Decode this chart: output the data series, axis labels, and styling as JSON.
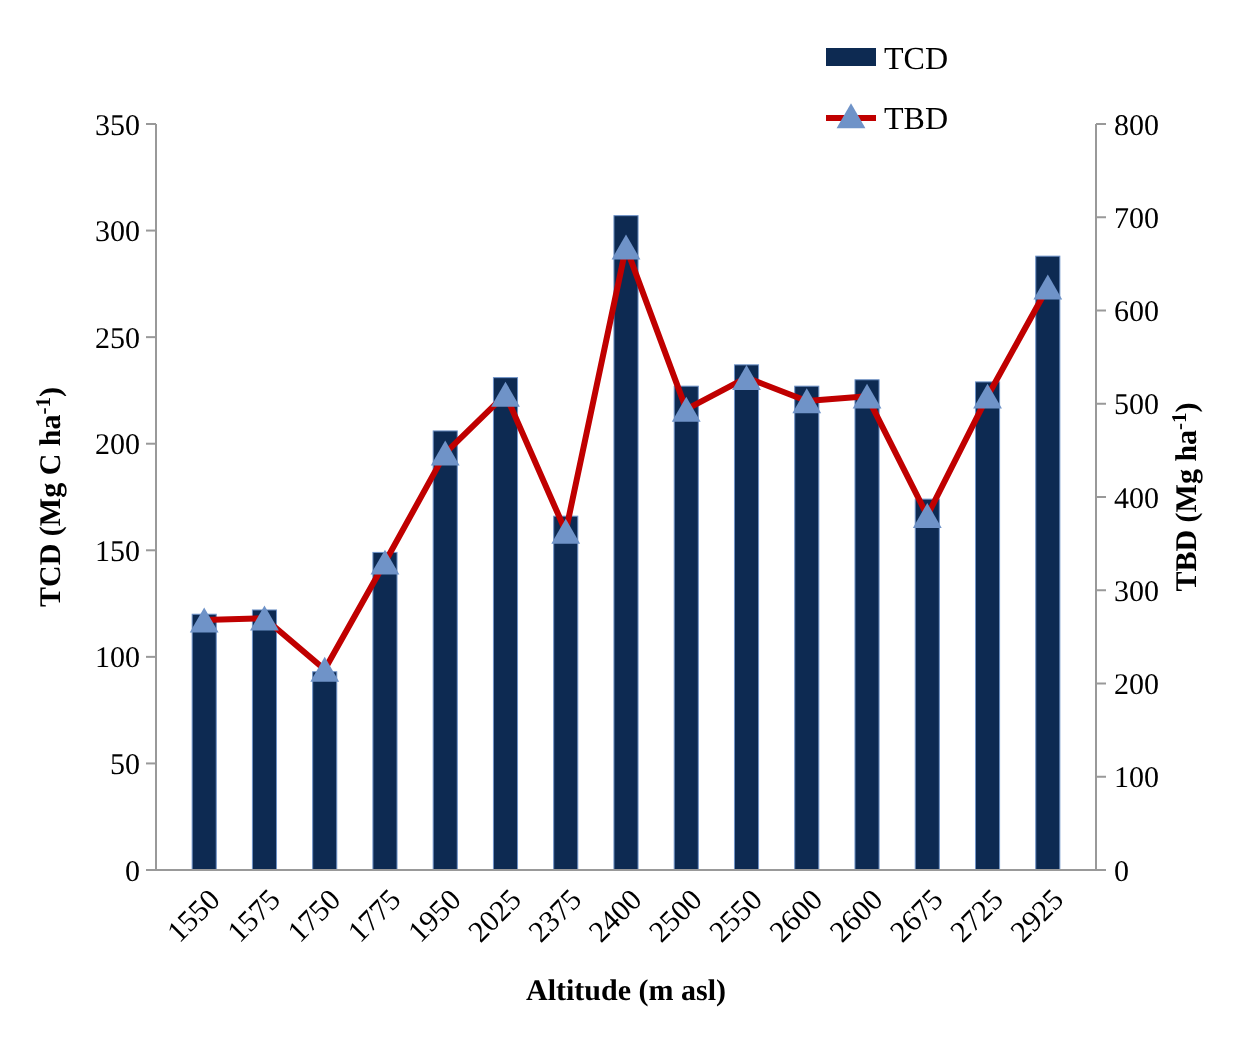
{
  "chart_data": {
    "type": "bar",
    "xlabel": "Altitude (m asl)",
    "ylabel": "TCD (Mg C ha$^{-1}$)",
    "y2label": "TBD (Mg ha$^{-1}$)",
    "categories": [
      "1550",
      "1575",
      "1750",
      "1775",
      "1950",
      "2025",
      "2375",
      "2400",
      "2500",
      "2550",
      "2600",
      "2600",
      "2675",
      "2725",
      "2925"
    ],
    "series": [
      {
        "name": "TCD",
        "color": "#0d2a52",
        "values": [
          120,
          122,
          93,
          149,
          206,
          231,
          166,
          307,
          227,
          237,
          227,
          230,
          174,
          229,
          288
        ]
      },
      {
        "name": "TBD",
        "type": "line",
        "axis": "y2",
        "color": "#c00000",
        "marker": "triangle",
        "values": [
          268,
          270,
          215,
          330,
          447,
          510,
          363,
          668,
          494,
          528,
          503,
          508,
          380,
          508,
          625
        ]
      }
    ],
    "ylim": [
      0,
      350
    ],
    "yticks": [
      0,
      50,
      100,
      150,
      200,
      250,
      300,
      350
    ],
    "y2lim": [
      0,
      800
    ],
    "y2ticks": [
      0,
      100,
      200,
      300,
      400,
      500,
      600,
      700,
      800
    ],
    "grid": false,
    "legend": "top right"
  }
}
